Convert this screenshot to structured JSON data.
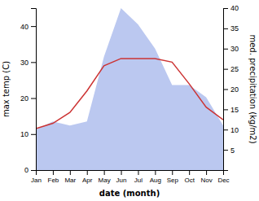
{
  "chart_data": {
    "type": "line",
    "xlabel": "date (month)",
    "ylabel": "max temp (C)",
    "y2label": "med. precipitation (kg/m2)",
    "categories": [
      "Jan",
      "Feb",
      "Mar",
      "Apr",
      "May",
      "Jun",
      "Jul",
      "Aug",
      "Sep",
      "Oct",
      "Nov",
      "Dec"
    ],
    "series": [
      {
        "type": "area",
        "axis": "y2",
        "color": "#bbc8f0",
        "values": [
          10,
          12,
          11,
          12,
          28,
          40,
          36,
          30,
          21,
          21,
          18,
          11
        ]
      },
      {
        "type": "line",
        "color": "#cc3333",
        "values": [
          11.5,
          13,
          16,
          22,
          29,
          31,
          31,
          31,
          30,
          24,
          17.5,
          14.0
        ]
      }
    ],
    "ylim": [
      0,
      45
    ],
    "yticks": [
      0,
      10,
      20,
      30,
      40
    ],
    "y2lim": [
      0,
      40
    ],
    "y2ticks": [
      5,
      10,
      15,
      20,
      25,
      30,
      35,
      40
    ]
  }
}
